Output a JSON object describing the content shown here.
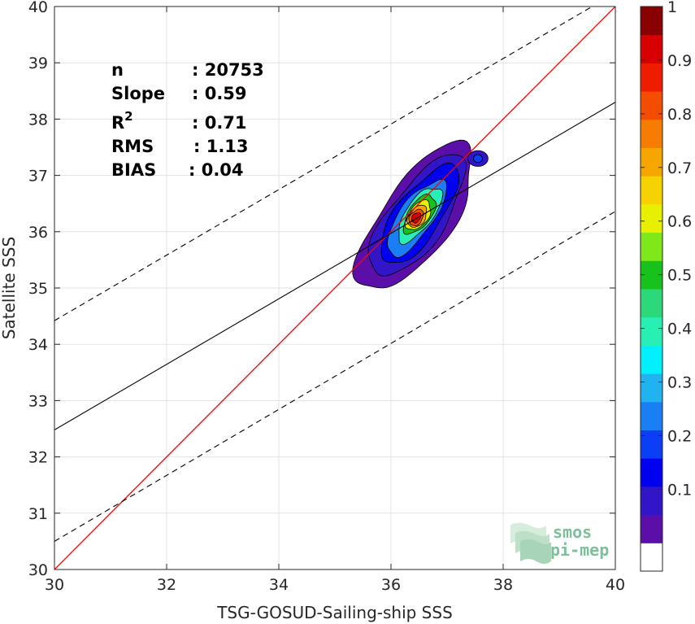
{
  "chart_data": {
    "type": "scatter",
    "subtype": "density-contour",
    "title": "",
    "xlabel": "TSG-GOSUD-Sailing-ship SSS",
    "ylabel": "Satellite SSS",
    "xlim": [
      30,
      40
    ],
    "ylim": [
      30,
      40
    ],
    "xticks": [
      30,
      32,
      34,
      36,
      38,
      40
    ],
    "yticks": [
      30,
      31,
      32,
      33,
      34,
      35,
      36,
      37,
      38,
      39,
      40
    ],
    "grid": true,
    "stats": [
      {
        "label": "n",
        "sep": ":",
        "value": "20753"
      },
      {
        "label": "Slope",
        "sep": ":",
        "value": "0.59"
      },
      {
        "label": "R",
        "sup": "2",
        "sep": ":",
        "value": "0.71"
      },
      {
        "label": "RMS",
        "sep": ":",
        "value": "1.13"
      },
      {
        "label": "BIAS",
        "sep": ":",
        "value": "0.04"
      }
    ],
    "lines": {
      "identity": {
        "slope": 1,
        "intercept": 0,
        "color": "#ff0000"
      },
      "fit": {
        "x": [
          30,
          40
        ],
        "y": [
          32.48,
          38.3
        ],
        "color": "#000000"
      },
      "upper_bound": {
        "x": [
          30,
          40
        ],
        "y": [
          34.42,
          40.24
        ],
        "color": "#000000",
        "dash": true
      },
      "lower_bound": {
        "x": [
          30,
          40
        ],
        "y": [
          30.5,
          36.36
        ],
        "color": "#000000",
        "dash": true
      }
    },
    "density": {
      "center": [
        36.6,
        36.5
      ],
      "levels": [
        0.05,
        0.1,
        0.2,
        0.3,
        0.4,
        0.5,
        0.6,
        0.7,
        0.8,
        0.9
      ]
    },
    "colorbar": {
      "min": 0,
      "max": 1,
      "ticks": [
        "0.1",
        "0.2",
        "0.3",
        "0.4",
        "0.5",
        "0.6",
        "0.7",
        "0.8",
        "0.9",
        "1"
      ],
      "colors": [
        "#ffffff",
        "#5b0fa8",
        "#3315c8",
        "#0000f0",
        "#0a3ff5",
        "#1a7ef5",
        "#21b3f0",
        "#00f0ff",
        "#28f0b4",
        "#2dd87a",
        "#18c21c",
        "#7fe81b",
        "#e8f000",
        "#f5d200",
        "#f7a600",
        "#f77d00",
        "#f44d00",
        "#ef1c00",
        "#d80000",
        "#8a0000"
      ]
    }
  },
  "logo": {
    "line1": "smos",
    "line2": "pi-mep"
  }
}
